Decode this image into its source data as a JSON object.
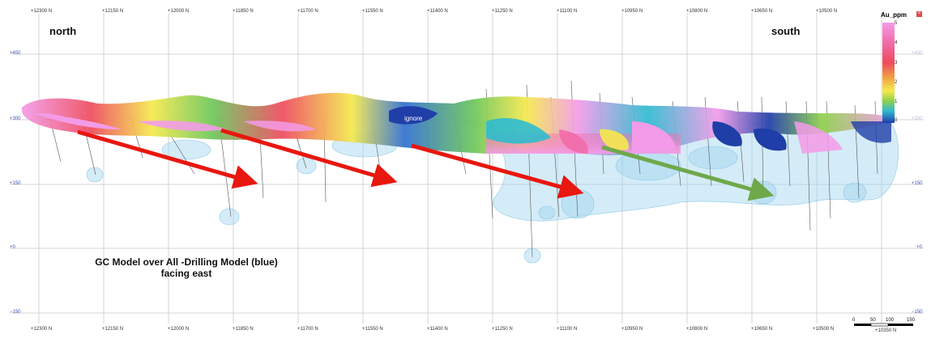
{
  "labels": {
    "north": "north",
    "south": "south",
    "caption_line1": "GC Model over All -Drilling Model (blue)",
    "caption_line2": "facing east",
    "ignore": "ignore"
  },
  "northings_top": [
    "+12300 N",
    "+12150 N",
    "+12000 N",
    "+11850 N",
    "+11700 N",
    "+11550 N",
    "+11400 N",
    "+11250 N",
    "+11100 N",
    "+10950 N",
    "+10800 N",
    "+10650 N",
    "+10500 N"
  ],
  "northings_bottom": [
    "+12300 N",
    "+12150 N",
    "+12000 N",
    "+11850 N",
    "+11700 N",
    "+11550 N",
    "+11400 N",
    "+11250 N",
    "+11100 N",
    "+10950 N",
    "+10800 N",
    "+10650 N",
    "+10500 N",
    "+10350 N"
  ],
  "elevations": [
    "+450",
    "+300",
    "+150",
    "+0",
    "−150"
  ],
  "legend": {
    "title": "Au_ppm",
    "ticks": [
      "5",
      "4",
      "3",
      "2",
      "1",
      "0"
    ],
    "colors": [
      "#f39be8",
      "#f26ba8",
      "#ee4b5d",
      "#f0a441",
      "#f5e94c",
      "#8fd14a",
      "#2fbbd0",
      "#1f3ea8"
    ]
  },
  "scale_bar": [
    "0",
    "50",
    "100",
    "150"
  ],
  "arrow_colors": {
    "north_trend": "#e8170f",
    "south_trend": "#6fa84a"
  },
  "icons": {
    "close": "close-icon"
  }
}
